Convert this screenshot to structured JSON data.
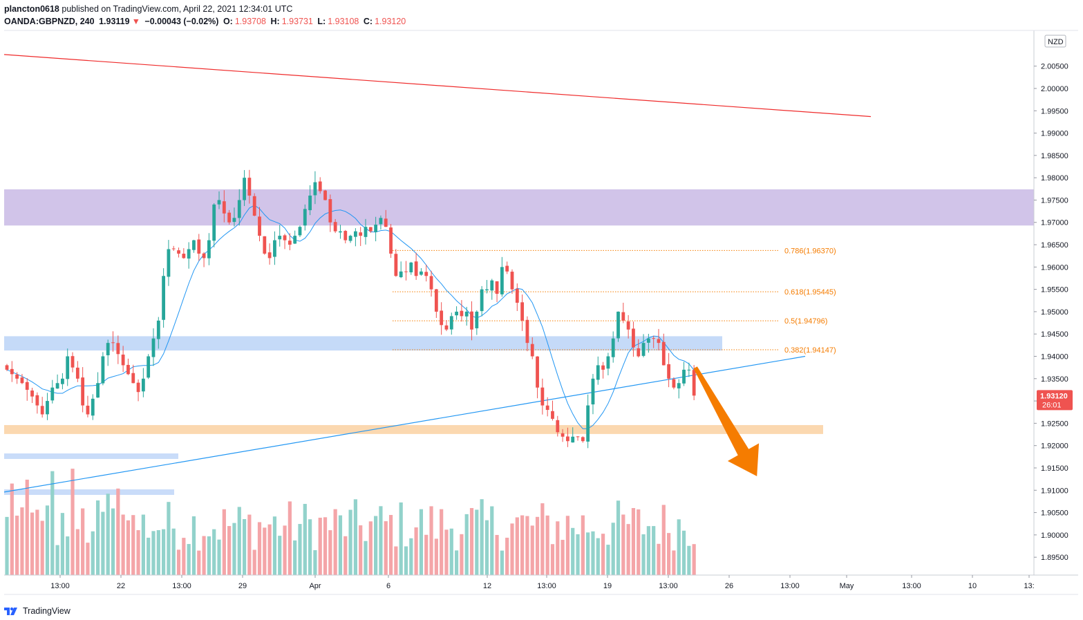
{
  "header": {
    "user": "plancton0618",
    "published_text": "published on TradingView.com, April 22, 2021 12:34:01 UTC",
    "symbol": "OANDA:GBPNZD, 240",
    "last": "1.93119",
    "change_arrow": "▼",
    "change": "−0.00043 (−0.02%)",
    "o_label": "O:",
    "o": "1.93708",
    "h_label": "H:",
    "h": "1.93731",
    "l_label": "L:",
    "l": "1.93108",
    "c_label": "C:",
    "c": "1.93120"
  },
  "footer": {
    "brand": "TradingView",
    "logo_icon": "tradingview-logo-icon"
  },
  "colors": {
    "up": "#26a69a",
    "down": "#ef5350",
    "ma": "#2196f3",
    "resistance_zone": "#d1c4e9",
    "support_zone_blue": "#bbd3f7",
    "support_zone_orange": "#fbd8b0",
    "downtrend_line": "#ef2a2a",
    "fib": "#f57c00",
    "arrow": "#f57c00",
    "vol_up": "#92d2cb",
    "vol_down": "#f4a5a8"
  },
  "chart_data": {
    "type": "candlestick",
    "currency_badge": "NZD",
    "price_label": "1.93120",
    "countdown_label": "26:01",
    "y_range": [
      1.891,
      2.013
    ],
    "y_ticks": [
      "2.00500",
      "2.00000",
      "1.99500",
      "1.99000",
      "1.98500",
      "1.98000",
      "1.97500",
      "1.97000",
      "1.96500",
      "1.96000",
      "1.95500",
      "1.95000",
      "1.94500",
      "1.94000",
      "1.93500",
      "1.93000",
      "1.92500",
      "1.92000",
      "1.91500",
      "1.91000",
      "1.90500",
      "1.90000",
      "1.89500"
    ],
    "x_ticks": [
      "13:00",
      "22",
      "13:00",
      "29",
      "Apr",
      "6",
      "12",
      "13:00",
      "19",
      "13:00",
      "26",
      "13:00",
      "May",
      "13:00",
      "10",
      "13:"
    ],
    "zones": [
      {
        "name": "resistance",
        "low": 1.9693,
        "high": 1.9774
      },
      {
        "name": "support-blue",
        "low": 1.9413,
        "high": 1.9445
      },
      {
        "name": "support-orange",
        "low": 1.9226,
        "high": 1.9246
      }
    ],
    "fib_levels": [
      {
        "label": "0.786(1.96370)",
        "price": 1.9637
      },
      {
        "label": "0.618(1.95445)",
        "price": 1.95445
      },
      {
        "label": "0.5(1.94796)",
        "price": 1.94796
      },
      {
        "label": "0.382(1.94147)",
        "price": 1.94147
      }
    ],
    "close_path": [
      [
        0,
        1.937
      ],
      [
        3,
        1.934
      ],
      [
        5,
        1.931
      ],
      [
        7,
        1.927
      ],
      [
        9,
        1.933
      ],
      [
        11,
        1.935
      ],
      [
        12,
        1.94
      ],
      [
        14,
        1.935
      ],
      [
        15,
        1.929
      ],
      [
        16,
        1.927
      ],
      [
        18,
        1.934
      ],
      [
        19,
        1.94
      ],
      [
        20,
        1.943
      ],
      [
        21,
        1.943
      ],
      [
        23,
        1.938
      ],
      [
        24,
        1.936
      ],
      [
        26,
        1.932
      ],
      [
        27,
        1.935
      ],
      [
        28,
        1.94
      ],
      [
        30,
        1.948
      ],
      [
        31,
        1.958
      ],
      [
        32,
        1.964
      ],
      [
        33,
        1.964
      ],
      [
        35,
        1.962
      ],
      [
        37,
        1.966
      ],
      [
        38,
        1.963
      ],
      [
        39,
        1.962
      ],
      [
        40,
        1.966
      ],
      [
        41,
        1.974
      ],
      [
        42,
        1.975
      ],
      [
        43,
        1.972
      ],
      [
        44,
        1.97
      ],
      [
        45,
        1.971
      ],
      [
        46,
        1.975
      ],
      [
        47,
        1.98
      ],
      [
        48,
        1.976
      ],
      [
        50,
        1.967
      ],
      [
        51,
        1.963
      ],
      [
        52,
        1.962
      ],
      [
        53,
        1.966
      ],
      [
        54,
        1.967
      ],
      [
        56,
        1.965
      ],
      [
        58,
        1.969
      ],
      [
        59,
        1.973
      ],
      [
        60,
        1.976
      ],
      [
        61,
        1.979
      ],
      [
        63,
        1.975
      ],
      [
        64,
        1.97
      ],
      [
        65,
        1.968
      ],
      [
        66,
        1.968
      ],
      [
        67,
        1.966
      ],
      [
        68,
        1.967
      ],
      [
        69,
        1.968
      ],
      [
        70,
        1.967
      ],
      [
        71,
        1.969
      ],
      [
        72,
        1.968
      ],
      [
        74,
        1.971
      ],
      [
        75,
        1.969
      ],
      [
        76,
        1.963
      ],
      [
        77,
        1.958
      ],
      [
        78,
        1.959
      ],
      [
        79,
        1.959
      ],
      [
        80,
        1.961
      ],
      [
        81,
        1.958
      ],
      [
        82,
        1.959
      ],
      [
        83,
        1.958
      ],
      [
        84,
        1.955
      ],
      [
        85,
        1.95
      ],
      [
        86,
        1.947
      ],
      [
        87,
        1.946
      ],
      [
        88,
        1.949
      ],
      [
        89,
        1.95
      ],
      [
        90,
        1.949
      ],
      [
        91,
        1.95
      ],
      [
        92,
        1.946
      ],
      [
        93,
        1.95
      ],
      [
        94,
        1.955
      ],
      [
        95,
        1.955
      ],
      [
        96,
        1.957
      ],
      [
        97,
        1.954
      ],
      [
        98,
        1.96
      ],
      [
        99,
        1.959
      ],
      [
        100,
        1.955
      ],
      [
        101,
        1.952
      ],
      [
        102,
        1.948
      ],
      [
        103,
        1.943
      ],
      [
        104,
        1.94
      ],
      [
        105,
        1.933
      ],
      [
        106,
        1.929
      ],
      [
        107,
        1.928
      ],
      [
        108,
        1.926
      ],
      [
        109,
        1.923
      ],
      [
        110,
        1.922
      ],
      [
        111,
        1.921
      ],
      [
        112,
        1.922
      ],
      [
        113,
        1.922
      ],
      [
        114,
        1.921
      ],
      [
        115,
        1.929
      ],
      [
        116,
        1.935
      ],
      [
        117,
        1.938
      ],
      [
        118,
        1.937
      ],
      [
        119,
        1.94
      ],
      [
        120,
        1.944
      ],
      [
        121,
        1.95
      ],
      [
        122,
        1.948
      ],
      [
        123,
        1.946
      ],
      [
        124,
        1.942
      ],
      [
        125,
        1.94
      ],
      [
        126,
        1.943
      ],
      [
        127,
        1.944
      ],
      [
        128,
        1.944
      ],
      [
        129,
        1.943
      ],
      [
        130,
        1.938
      ],
      [
        131,
        1.935
      ],
      [
        132,
        1.933
      ],
      [
        133,
        1.934
      ],
      [
        134,
        1.937
      ],
      [
        135,
        1.937
      ],
      [
        136,
        1.9312
      ]
    ],
    "annotations": [
      {
        "name": "downtrend-line",
        "from": [
          0,
          2.0076
        ],
        "to": [
          171,
          1.9937
        ]
      },
      {
        "name": "uptrend-line",
        "from": [
          0,
          1.9096
        ],
        "to": [
          158,
          1.94
        ]
      },
      {
        "name": "bearish-arrow",
        "from": [
          136,
          1.9375
        ],
        "to": [
          149,
          1.915
        ]
      }
    ],
    "grid": false,
    "legend": "none"
  }
}
